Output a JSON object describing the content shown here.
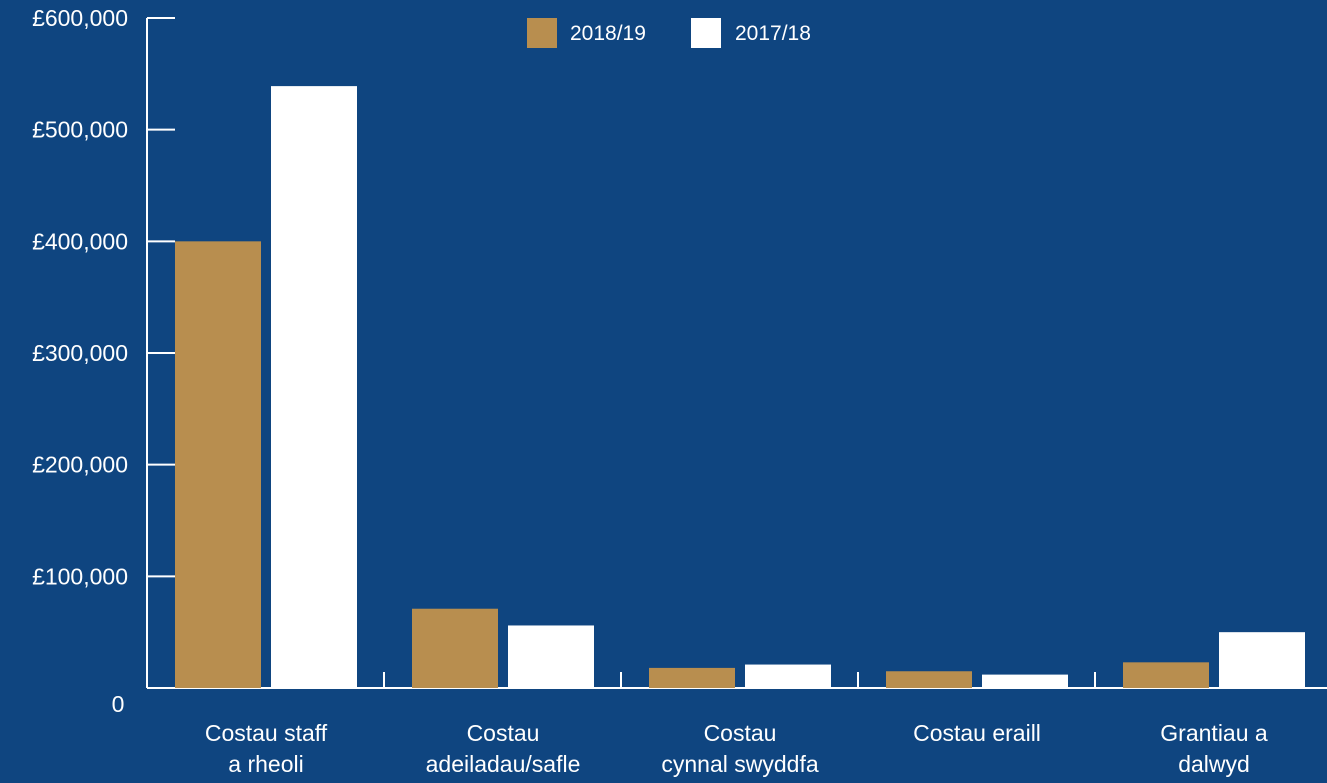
{
  "colors": {
    "background": "#0f4580",
    "axis": "#ffffff",
    "series_2018_19": "#b88e4f",
    "series_2017_18": "#ffffff",
    "text": "#ffffff"
  },
  "chart_data": {
    "type": "bar",
    "title": "",
    "xlabel": "",
    "ylabel": "",
    "ylim": [
      0,
      600000
    ],
    "yticks": [
      0,
      100000,
      200000,
      300000,
      400000,
      500000,
      600000
    ],
    "ytick_labels": [
      "0",
      "£100,000",
      "£200,000",
      "£300,000",
      "£400,000",
      "£500,000",
      "£600,000"
    ],
    "grid": false,
    "legend_position": "top-center",
    "categories": [
      [
        "Costau staff",
        "a rheoli"
      ],
      [
        "Costau",
        "adeiladau/safle"
      ],
      [
        "Costau",
        "cynnal swyddfa"
      ],
      [
        "Costau eraill"
      ],
      [
        "Grantiau a",
        "dalwyd"
      ]
    ],
    "series": [
      {
        "name": "2018/19",
        "values": [
          400000,
          71000,
          18000,
          15000,
          23000
        ]
      },
      {
        "name": "2017/18",
        "values": [
          539000,
          56000,
          21000,
          12000,
          50000
        ]
      }
    ]
  }
}
